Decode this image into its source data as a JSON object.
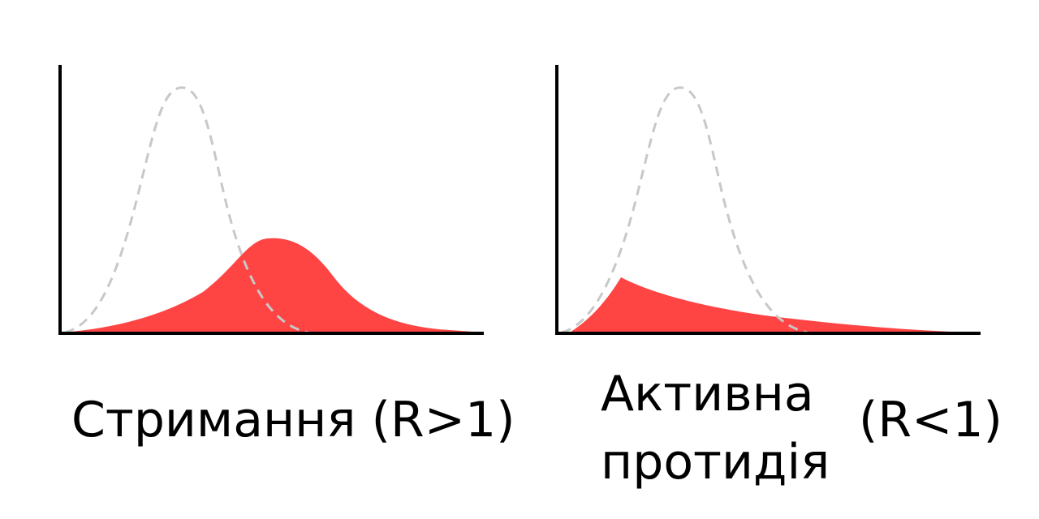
{
  "colors": {
    "fill": "#FF4444",
    "dashed": "#C8C8C8",
    "axis": "#000000"
  },
  "panels": [
    {
      "caption_text": "Стримання",
      "caption_ratio": "(R>1)",
      "fill_shape": "bell-wide",
      "dashed_shape": "bell-narrow"
    },
    {
      "caption_line1": "Активна",
      "caption_line2": "протидія",
      "caption_ratio": "(R<1)",
      "fill_shape": "early-peak-long-tail",
      "dashed_shape": "bell-narrow"
    }
  ]
}
